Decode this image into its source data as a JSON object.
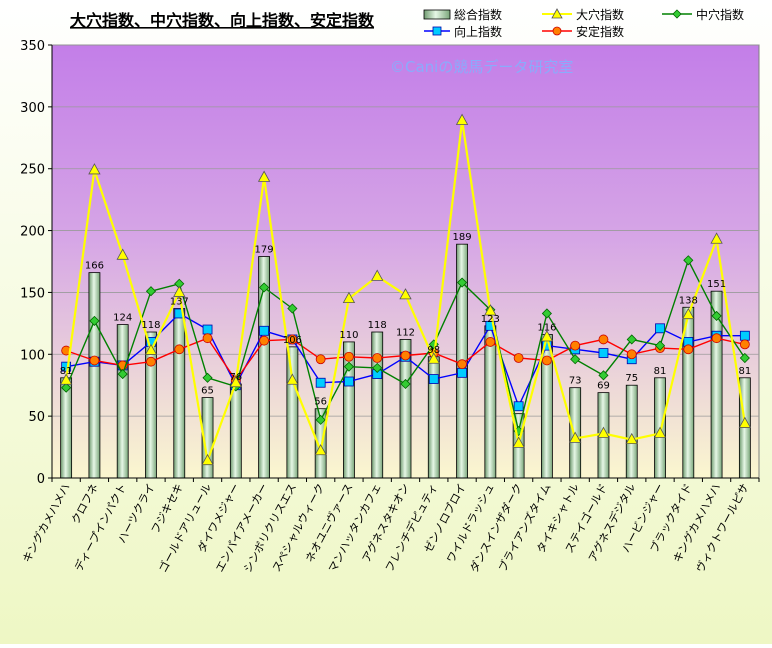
{
  "chart_data": {
    "type": "bar",
    "title": "大穴指数、中穴指数、向上指数、安定指数",
    "watermark": "©Caniの競馬データ研究室",
    "xlabel": "",
    "ylabel": "",
    "ylim": [
      0,
      350
    ],
    "yticks": [
      0,
      50,
      100,
      150,
      200,
      250,
      300,
      350
    ],
    "grid": "horizontal",
    "legend_position": "top-right",
    "categories": [
      "キングカメハメハ",
      "クロフネ",
      "ディープインパクト",
      "ハーツクライ",
      "フジキセキ",
      "ゴールドアリュール",
      "ダイワメジャー",
      "エンパイアメーカー",
      "シンボリクリスエス",
      "スペシャルウィーク",
      "ネオユニヴァース",
      "マンハッタンカフェ",
      "アグネスタキオン",
      "フレンチデピュティ",
      "ゼンノロブロイ",
      "ワイルドラッシュ",
      "ダンスインザダーク",
      "ブライアンズタイム",
      "タイキシャトル",
      "ステイゴールド",
      "アグネスデジタル",
      "ハービンジャー",
      "ブラックタイド",
      "キングカメハメハ",
      "ヴィクトワールピサ"
    ],
    "series": [
      {
        "name": "総合指数",
        "kind": "bar",
        "color": "#a9d6a9",
        "values": [
          81,
          166,
          124,
          118,
          137,
          65,
          76,
          179,
          106,
          56,
          110,
          118,
          112,
          98,
          189,
          123,
          52,
          116,
          73,
          69,
          75,
          81,
          138,
          151,
          81
        ],
        "labels": [
          "81",
          "166",
          "124",
          "118",
          "137",
          "65",
          "76",
          "179",
          "106",
          "56",
          "110",
          "118",
          "112",
          "98",
          "189",
          "123",
          "",
          "116",
          "73",
          "69",
          "75",
          "81",
          "138",
          "151",
          "81"
        ]
      },
      {
        "name": "大穴指数",
        "kind": "line",
        "marker": "triangle",
        "color": "#ffff00",
        "values": [
          79,
          249,
          180,
          103,
          150,
          14,
          77,
          243,
          79,
          22,
          145,
          163,
          148,
          96,
          289,
          135,
          28,
          114,
          32,
          36,
          31,
          36,
          132,
          193,
          44
        ]
      },
      {
        "name": "中穴指数",
        "kind": "line",
        "marker": "diamond",
        "color": "#008000",
        "values": [
          73,
          127,
          84,
          151,
          157,
          81,
          74,
          154,
          137,
          47,
          90,
          89,
          76,
          108,
          158,
          136,
          38,
          133,
          96,
          83,
          112,
          107,
          176,
          131,
          97
        ]
      },
      {
        "name": "向上指数",
        "kind": "line",
        "marker": "square",
        "color": "#0000ff",
        "values": [
          90,
          94,
          91,
          110,
          133,
          120,
          75,
          119,
          112,
          77,
          78,
          84,
          98,
          80,
          85,
          123,
          58,
          107,
          104,
          101,
          96,
          121,
          110,
          115,
          115
        ]
      },
      {
        "name": "安定指数",
        "kind": "line",
        "marker": "circle",
        "color": "#ff0000",
        "values": [
          103,
          95,
          91,
          94,
          104,
          113,
          79,
          111,
          112,
          96,
          98,
          97,
          99,
          101,
          92,
          110,
          97,
          95,
          107,
          112,
          100,
          105,
          104,
          113,
          108
        ]
      }
    ]
  }
}
